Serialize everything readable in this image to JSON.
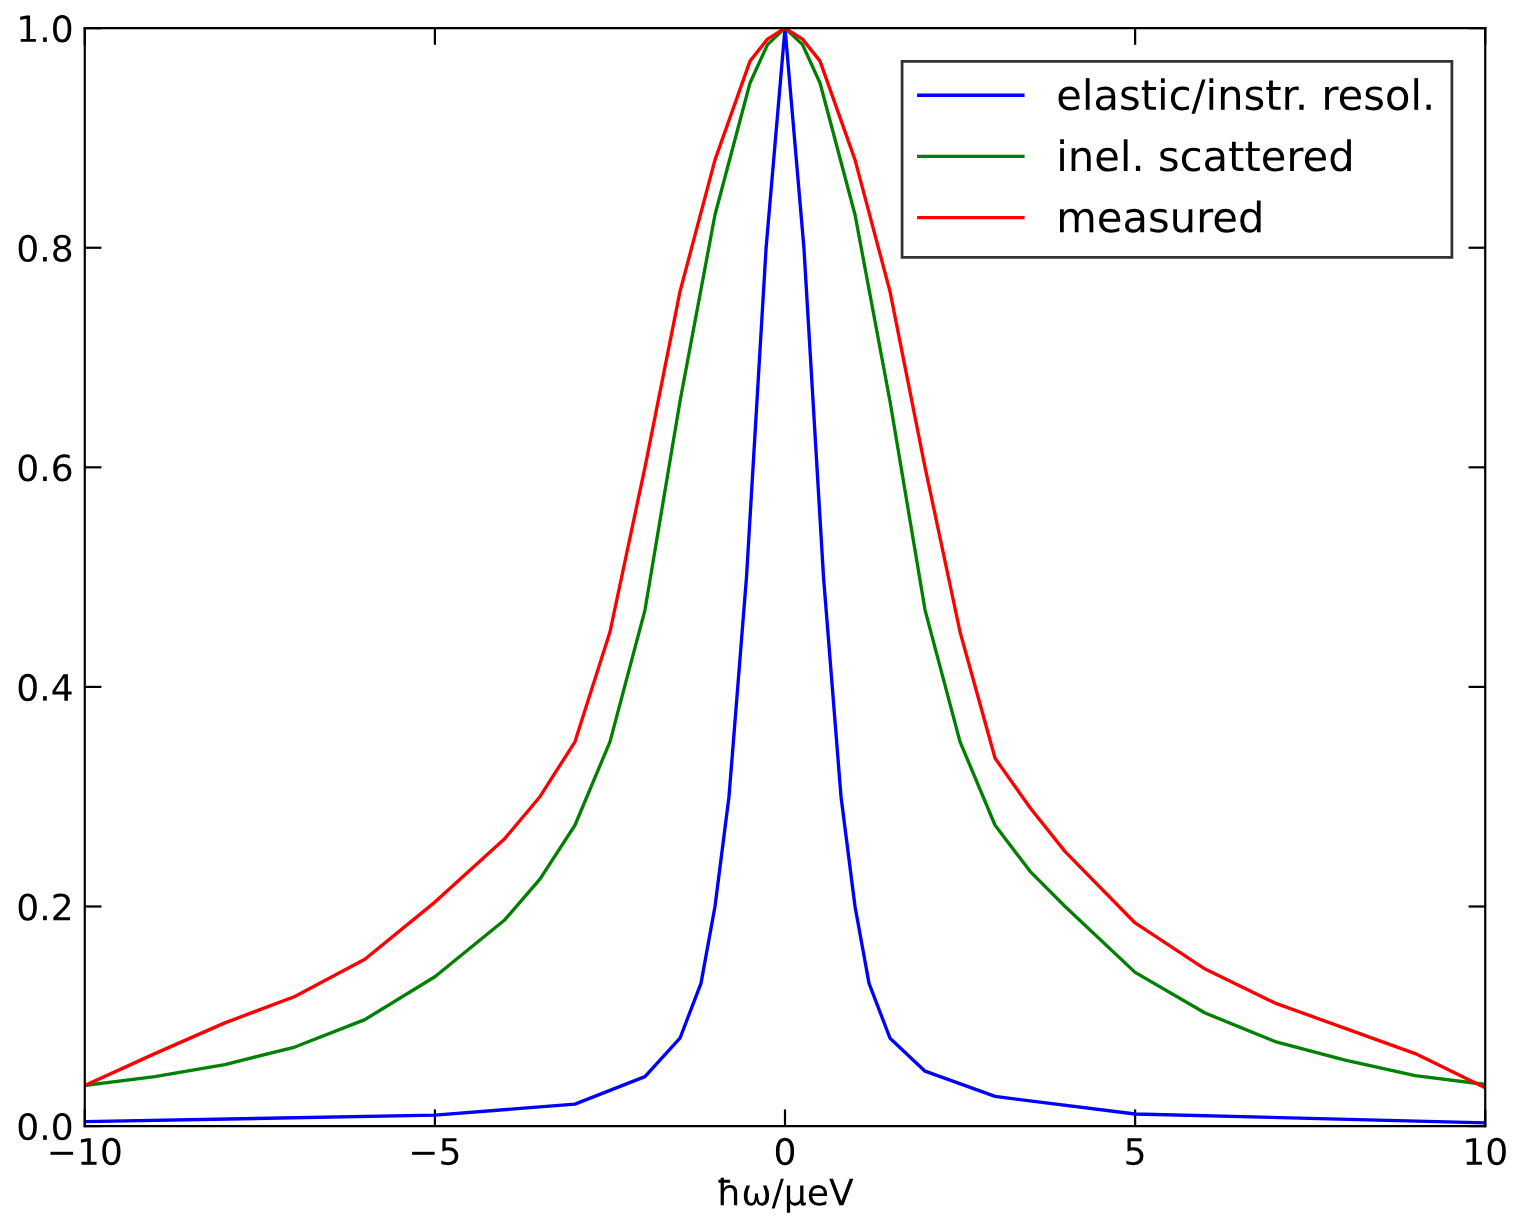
{
  "chart_data": {
    "type": "line",
    "xlabel": "ħω/μeV",
    "xlim": [
      -10,
      10
    ],
    "ylim": [
      0,
      1.0
    ],
    "xticks": [
      {
        "value": -10,
        "label": "−10"
      },
      {
        "value": -5,
        "label": "−5"
      },
      0,
      5,
      10
    ],
    "yticks": [
      {
        "value": 0,
        "label": "0.0"
      },
      0.2,
      0.4,
      0.6,
      0.8,
      {
        "value": 1,
        "label": "1.0"
      }
    ],
    "grid": false,
    "legend": "top right",
    "marker": "none",
    "line_style": "solid",
    "series": [
      {
        "name": "elastic/instr. resol.",
        "color": "#0000ff",
        "x": [
          -10,
          -5,
          -3,
          -2,
          -1.5,
          -1.2,
          -1,
          -0.8,
          -0.55,
          -0.27,
          0,
          0.27,
          0.55,
          0.8,
          1,
          1.2,
          1.5,
          2,
          3,
          5,
          10
        ],
        "values": [
          0.004,
          0.01,
          0.02,
          0.045,
          0.08,
          0.13,
          0.2,
          0.3,
          0.5,
          0.8,
          1.0,
          0.8,
          0.5,
          0.3,
          0.2,
          0.13,
          0.08,
          0.05,
          0.027,
          0.011,
          0.003
        ]
      },
      {
        "name": "inel. scattered",
        "color": "#008000",
        "x": [
          -10,
          -9,
          -8,
          -7,
          -6,
          -5,
          -4,
          -3.5,
          -3,
          -2.5,
          -2,
          -1.5,
          -1,
          -0.5,
          -0.25,
          0,
          0.25,
          0.5,
          1,
          1.5,
          2,
          2.5,
          3,
          3.5,
          4,
          5,
          6,
          7,
          8,
          9,
          10
        ],
        "values": [
          0.037,
          0.045,
          0.056,
          0.072,
          0.097,
          0.136,
          0.188,
          0.225,
          0.274,
          0.35,
          0.47,
          0.66,
          0.83,
          0.95,
          0.985,
          1.0,
          0.985,
          0.95,
          0.83,
          0.66,
          0.47,
          0.35,
          0.274,
          0.232,
          0.2,
          0.14,
          0.103,
          0.077,
          0.06,
          0.046,
          0.038
        ]
      },
      {
        "name": "measured",
        "color": "#ff0000",
        "x": [
          -10,
          -9,
          -8,
          -7,
          -6,
          -5,
          -4,
          -3.5,
          -3,
          -2.5,
          -2,
          -1.5,
          -1,
          -0.5,
          -0.25,
          0,
          0.25,
          0.5,
          1,
          1.5,
          2,
          2.5,
          3,
          3.5,
          4,
          5,
          6,
          7,
          8,
          9,
          10
        ],
        "values": [
          0.037,
          0.066,
          0.094,
          0.118,
          0.152,
          0.204,
          0.262,
          0.3,
          0.35,
          0.45,
          0.6,
          0.76,
          0.88,
          0.97,
          0.99,
          1.0,
          0.99,
          0.97,
          0.88,
          0.76,
          0.6,
          0.45,
          0.335,
          0.29,
          0.25,
          0.185,
          0.143,
          0.112,
          0.089,
          0.066,
          0.035
        ]
      }
    ]
  }
}
